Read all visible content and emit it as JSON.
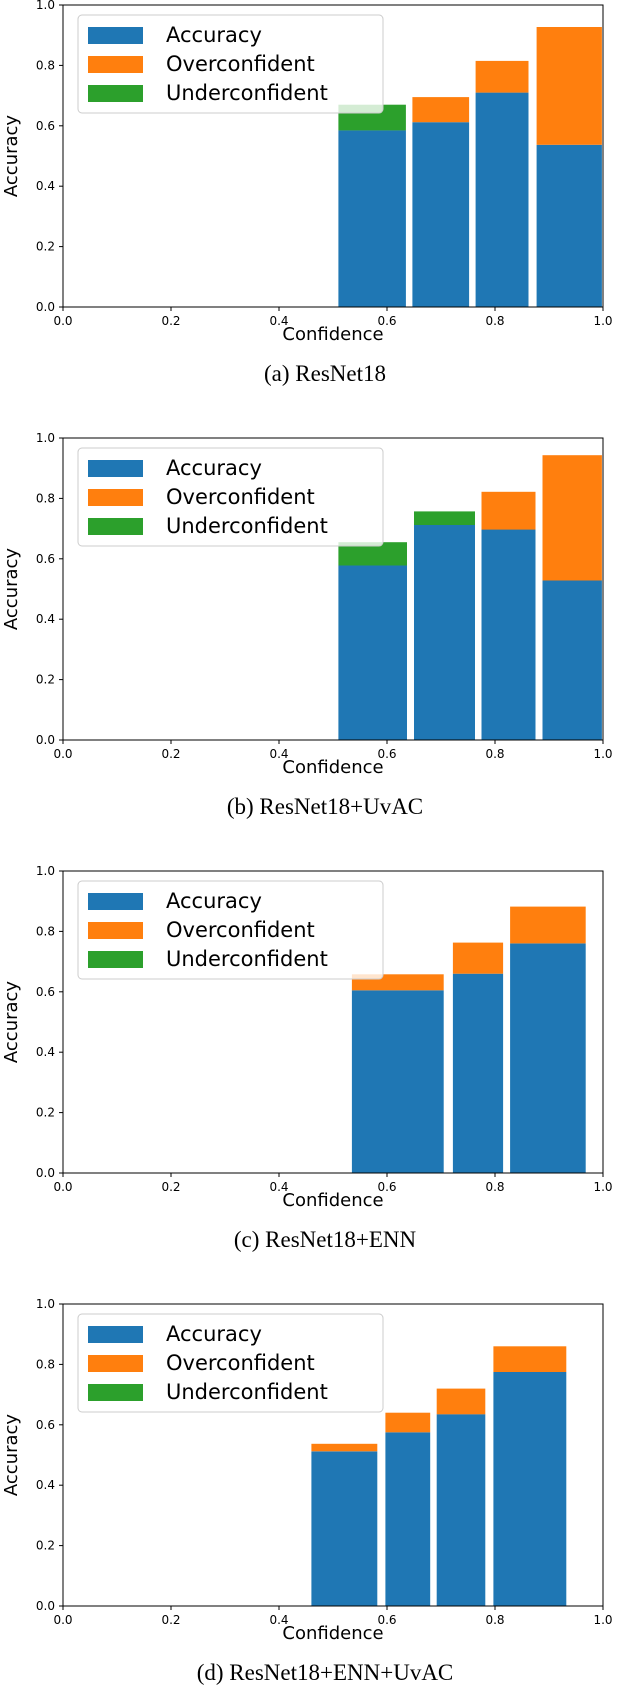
{
  "colors": {
    "accuracy": "#1f77b4",
    "overconfident": "#ff7f0e",
    "underconfident": "#2ca02c"
  },
  "chart_data": [
    {
      "type": "bar",
      "stacked": true,
      "caption": "(a) ResNet18",
      "xlabel": "Confidence",
      "ylabel": "Accuracy",
      "xlim": [
        0,
        1
      ],
      "ylim": [
        0,
        1
      ],
      "xticks": [
        "0.0",
        "0.2",
        "0.4",
        "0.6",
        "0.8",
        "1.0"
      ],
      "yticks": [
        "0.0",
        "0.2",
        "0.4",
        "0.6",
        "0.8",
        "1.0"
      ],
      "grid": false,
      "legend_position": "top-left",
      "legend": [
        "Accuracy",
        "Overconfident",
        "Underconfident"
      ],
      "bins": [
        {
          "x0": 0.51,
          "x1": 0.635,
          "accuracy": 0.585,
          "overconfident": 0,
          "underconfident": 0.085
        },
        {
          "x0": 0.647,
          "x1": 0.752,
          "accuracy": 0.612,
          "overconfident": 0.083,
          "underconfident": 0
        },
        {
          "x0": 0.764,
          "x1": 0.862,
          "accuracy": 0.71,
          "overconfident": 0.105,
          "underconfident": 0
        },
        {
          "x0": 0.877,
          "x1": 0.998,
          "accuracy": 0.537,
          "overconfident": 0.39,
          "underconfident": 0
        }
      ]
    },
    {
      "type": "bar",
      "stacked": true,
      "caption": "(b) ResNet18+UvAC",
      "xlabel": "Confidence",
      "ylabel": "Accuracy",
      "xlim": [
        0,
        1
      ],
      "ylim": [
        0,
        1
      ],
      "xticks": [
        "0.0",
        "0.2",
        "0.4",
        "0.6",
        "0.8",
        "1.0"
      ],
      "yticks": [
        "0.0",
        "0.2",
        "0.4",
        "0.6",
        "0.8",
        "1.0"
      ],
      "grid": false,
      "legend_position": "top-left",
      "legend": [
        "Accuracy",
        "Overconfident",
        "Underconfident"
      ],
      "bins": [
        {
          "x0": 0.51,
          "x1": 0.637,
          "accuracy": 0.578,
          "overconfident": 0,
          "underconfident": 0.077
        },
        {
          "x0": 0.65,
          "x1": 0.763,
          "accuracy": 0.712,
          "overconfident": 0,
          "underconfident": 0.045
        },
        {
          "x0": 0.775,
          "x1": 0.875,
          "accuracy": 0.697,
          "overconfident": 0.125,
          "underconfident": 0
        },
        {
          "x0": 0.888,
          "x1": 0.998,
          "accuracy": 0.528,
          "overconfident": 0.415,
          "underconfident": 0
        }
      ]
    },
    {
      "type": "bar",
      "stacked": true,
      "caption": "(c) ResNet18+ENN",
      "xlabel": "Confidence",
      "ylabel": "Accuracy",
      "xlim": [
        0,
        1
      ],
      "ylim": [
        0,
        1
      ],
      "xticks": [
        "0.0",
        "0.2",
        "0.4",
        "0.6",
        "0.8",
        "1.0"
      ],
      "yticks": [
        "0.0",
        "0.2",
        "0.4",
        "0.6",
        "0.8",
        "1.0"
      ],
      "grid": false,
      "legend_position": "top-left",
      "legend": [
        "Accuracy",
        "Overconfident",
        "Underconfident"
      ],
      "bins": [
        {
          "x0": 0.535,
          "x1": 0.705,
          "accuracy": 0.605,
          "overconfident": 0.053,
          "underconfident": 0
        },
        {
          "x0": 0.722,
          "x1": 0.815,
          "accuracy": 0.66,
          "overconfident": 0.103,
          "underconfident": 0
        },
        {
          "x0": 0.828,
          "x1": 0.968,
          "accuracy": 0.76,
          "overconfident": 0.122,
          "underconfident": 0
        }
      ]
    },
    {
      "type": "bar",
      "stacked": true,
      "caption": "(d) ResNet18+ENN+UvAC",
      "xlabel": "Confidence",
      "ylabel": "Accuracy",
      "xlim": [
        0,
        1
      ],
      "ylim": [
        0,
        1
      ],
      "xticks": [
        "0.0",
        "0.2",
        "0.4",
        "0.6",
        "0.8",
        "1.0"
      ],
      "yticks": [
        "0.0",
        "0.2",
        "0.4",
        "0.6",
        "0.8",
        "1.0"
      ],
      "grid": false,
      "legend_position": "top-left",
      "legend": [
        "Accuracy",
        "Overconfident",
        "Underconfident"
      ],
      "bins": [
        {
          "x0": 0.46,
          "x1": 0.582,
          "accuracy": 0.512,
          "overconfident": 0.025,
          "underconfident": 0
        },
        {
          "x0": 0.597,
          "x1": 0.68,
          "accuracy": 0.575,
          "overconfident": 0.065,
          "underconfident": 0
        },
        {
          "x0": 0.692,
          "x1": 0.782,
          "accuracy": 0.635,
          "overconfident": 0.085,
          "underconfident": 0
        },
        {
          "x0": 0.797,
          "x1": 0.932,
          "accuracy": 0.775,
          "overconfident": 0.085,
          "underconfident": 0
        }
      ]
    }
  ]
}
